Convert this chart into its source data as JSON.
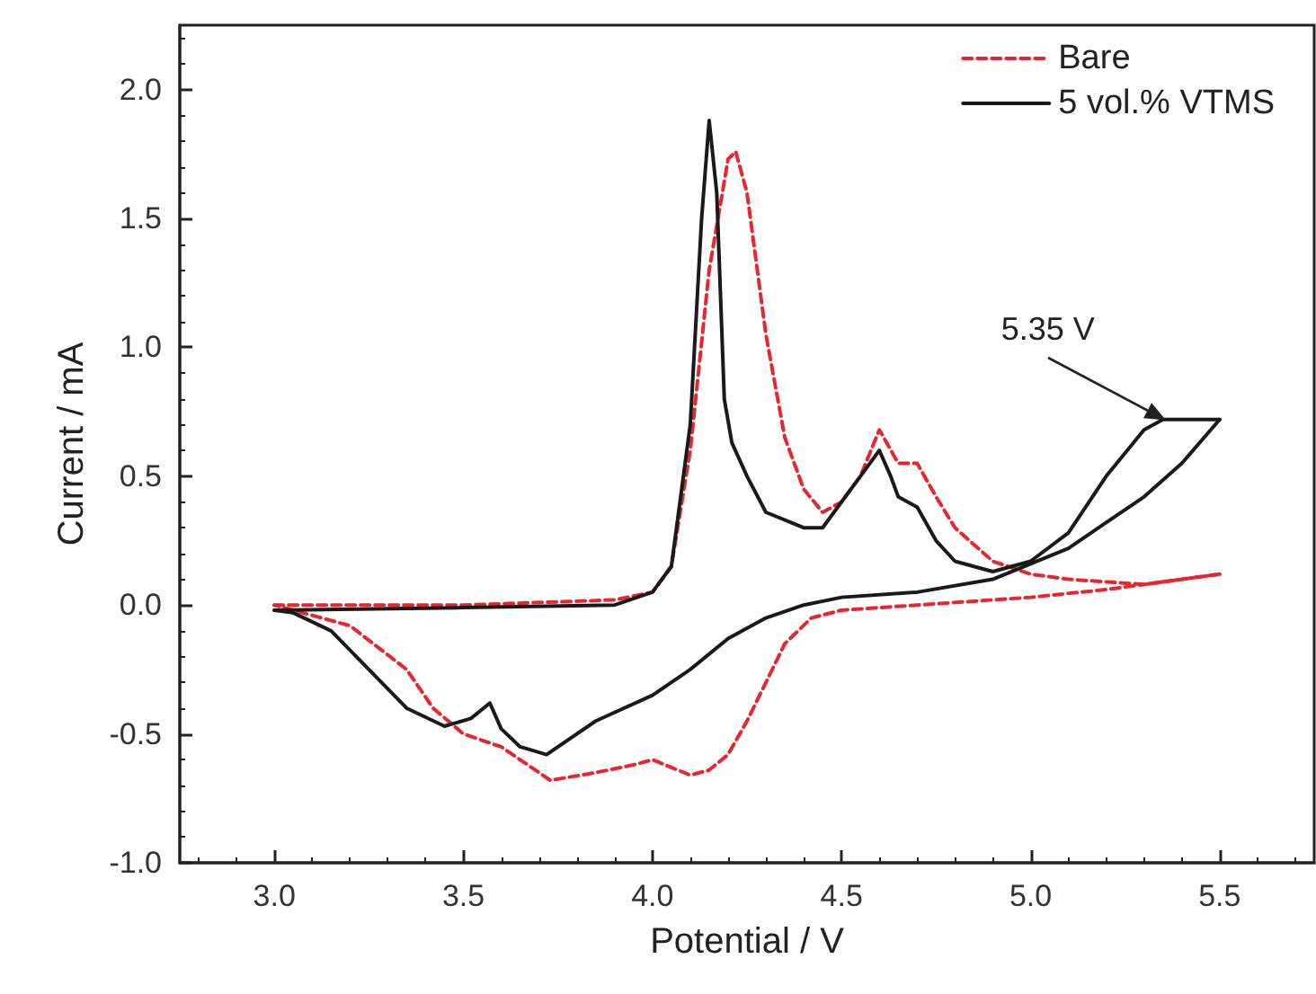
{
  "chart_data": {
    "type": "line",
    "xlabel": "Potential / V",
    "ylabel": "Current / mA",
    "xlim": [
      2.75,
      5.75
    ],
    "xticks": [
      {
        "value": 3,
        "label": "3.0"
      },
      3.5,
      {
        "value": 4,
        "label": "4.0"
      },
      4.5,
      {
        "value": 5,
        "label": "5.0"
      },
      5.5
    ],
    "ylim": [
      -1.0,
      2.25
    ],
    "yticks": [
      {
        "value": -1,
        "label": "-1.0"
      },
      -0.5,
      {
        "value": 0,
        "label": "0.0"
      },
      0.5,
      {
        "value": 1,
        "label": "1.0"
      },
      1.5,
      {
        "value": 2,
        "label": "2.0"
      }
    ],
    "grid": false,
    "legend": "top right",
    "marker": "none",
    "annotations": [
      {
        "text": "5.35 V",
        "x": 5.35,
        "y": 0.72
      }
    ],
    "series": [
      {
        "name": "Bare",
        "color": "#e8262e",
        "line_style": "dashed",
        "x": [
          3.0,
          3.5,
          3.9,
          4.0,
          4.05,
          4.1,
          4.15,
          4.2,
          4.22,
          4.25,
          4.3,
          4.35,
          4.4,
          4.45,
          4.5,
          4.55,
          4.6,
          4.65,
          4.7,
          4.75,
          4.8,
          4.9,
          5.0,
          5.1,
          5.3,
          5.5
        ],
        "values": [
          0.0,
          0.0,
          0.02,
          0.05,
          0.15,
          0.6,
          1.3,
          1.73,
          1.76,
          1.6,
          1.05,
          0.65,
          0.45,
          0.36,
          0.4,
          0.5,
          0.68,
          0.55,
          0.55,
          0.42,
          0.3,
          0.17,
          0.12,
          0.1,
          0.08,
          0.12
        ]
      },
      {
        "color": "#e8262e",
        "line_style": "dashed",
        "x": [
          5.5,
          5.4,
          5.2,
          5.0,
          4.7,
          4.5,
          4.42,
          4.35,
          4.3,
          4.25,
          4.2,
          4.15,
          4.1,
          4.05,
          4.0,
          3.95,
          3.85,
          3.73,
          3.65,
          3.6,
          3.5,
          3.42,
          3.35,
          3.2,
          3.05,
          3.0
        ],
        "values": [
          0.12,
          0.1,
          0.06,
          0.03,
          0.0,
          -0.02,
          -0.05,
          -0.15,
          -0.3,
          -0.45,
          -0.58,
          -0.64,
          -0.66,
          -0.63,
          -0.6,
          -0.62,
          -0.65,
          -0.68,
          -0.6,
          -0.55,
          -0.5,
          -0.4,
          -0.25,
          -0.08,
          -0.02,
          0.0
        ]
      },
      {
        "name": "5 vol.% VTMS",
        "color": "#1a1a1a",
        "line_style": "solid",
        "x": [
          3.0,
          3.5,
          3.9,
          4.0,
          4.05,
          4.1,
          4.13,
          4.15,
          4.17,
          4.19,
          4.21,
          4.25,
          4.3,
          4.4,
          4.45,
          4.5,
          4.55,
          4.6,
          4.63,
          4.65,
          4.7,
          4.75,
          4.8,
          4.9,
          5.0,
          5.1,
          5.2,
          5.3,
          5.35,
          5.5
        ],
        "values": [
          -0.02,
          -0.01,
          0.0,
          0.05,
          0.15,
          0.7,
          1.5,
          1.88,
          1.6,
          0.8,
          0.63,
          0.5,
          0.36,
          0.3,
          0.3,
          0.4,
          0.5,
          0.6,
          0.5,
          0.42,
          0.38,
          0.25,
          0.17,
          0.13,
          0.17,
          0.28,
          0.5,
          0.68,
          0.72,
          0.72
        ]
      },
      {
        "color": "#1a1a1a",
        "line_style": "solid",
        "x": [
          5.5,
          5.4,
          5.3,
          5.2,
          5.1,
          4.9,
          4.7,
          4.5,
          4.4,
          4.3,
          4.2,
          4.1,
          4.0,
          3.85,
          3.72,
          3.65,
          3.6,
          3.57,
          3.52,
          3.45,
          3.35,
          3.25,
          3.15,
          3.05,
          3.0
        ],
        "values": [
          0.72,
          0.55,
          0.42,
          0.32,
          0.22,
          0.1,
          0.05,
          0.03,
          0.0,
          -0.05,
          -0.13,
          -0.25,
          -0.35,
          -0.45,
          -0.58,
          -0.55,
          -0.48,
          -0.38,
          -0.44,
          -0.47,
          -0.4,
          -0.25,
          -0.1,
          -0.03,
          -0.02
        ]
      }
    ]
  }
}
